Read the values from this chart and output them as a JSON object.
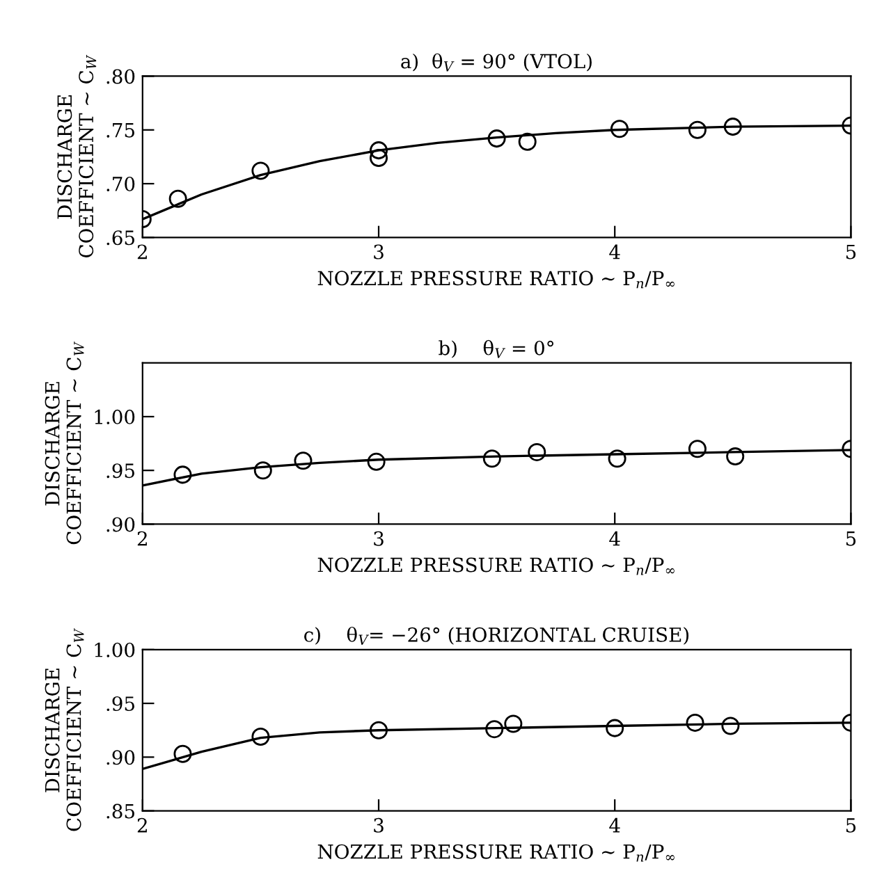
{
  "chart_data": [
    {
      "type": "scatter",
      "title": "a)  θ$_{V}$ = 90° (VTOL)",
      "xlabel": "NOZZLE PRESSURE RATIO ~ P$_{n}$/P$_{∞}$",
      "ylabel": "DISCHARGE\nCOEFFICIENT ~ C$_{W}$",
      "xlim": [
        2,
        5
      ],
      "ylim": [
        0.65,
        0.8
      ],
      "xticks": [
        2,
        3,
        4,
        5
      ],
      "yticks": [
        {
          "value": 0.65,
          "label": ".65"
        },
        {
          "value": 0.7,
          "label": ".70"
        },
        {
          "value": 0.75,
          "label": ".75"
        },
        {
          "value": 0.8,
          "label": ".80"
        }
      ],
      "grid": false,
      "series": [
        {
          "marker": "circle",
          "color": "#000000",
          "x": [
            2.0,
            2.15,
            2.5,
            3.0,
            3.0,
            3.5,
            3.63,
            4.02,
            4.35,
            4.5,
            5.0
          ],
          "values": [
            0.667,
            0.686,
            0.712,
            0.731,
            0.724,
            0.742,
            0.739,
            0.751,
            0.75,
            0.753,
            0.754
          ]
        },
        {
          "type": "line",
          "color": "#000000",
          "x": [
            2.0,
            2.25,
            2.5,
            2.75,
            3.0,
            3.25,
            3.5,
            3.75,
            4.0,
            4.5,
            5.0
          ],
          "values": [
            0.667,
            0.69,
            0.708,
            0.721,
            0.731,
            0.738,
            0.743,
            0.747,
            0.75,
            0.753,
            0.754
          ]
        }
      ]
    },
    {
      "type": "scatter",
      "title": "b)    θ$_{V}$ = 0°",
      "xlabel": "NOZZLE PRESSURE RATIO ~ P$_{n}$/P$_{∞}$",
      "ylabel": "DISCHARGE\nCOEFFICIENT ~ C$_{W}$",
      "xlim": [
        2,
        5
      ],
      "ylim": [
        0.9,
        1.05
      ],
      "xticks": [
        2,
        3,
        4,
        5
      ],
      "yticks": [
        {
          "value": 0.9,
          "label": ".90"
        },
        {
          "value": 0.95,
          "label": ".95"
        },
        {
          "value": 1.0,
          "label": "1.00"
        }
      ],
      "grid": false,
      "series": [
        {
          "marker": "circle",
          "color": "#000000",
          "x": [
            2.17,
            2.51,
            2.68,
            2.99,
            3.48,
            3.67,
            4.01,
            4.35,
            4.51,
            5.0
          ],
          "values": [
            0.946,
            0.95,
            0.959,
            0.958,
            0.961,
            0.967,
            0.961,
            0.97,
            0.963,
            0.97
          ]
        },
        {
          "type": "line",
          "color": "#000000",
          "x": [
            2.0,
            2.25,
            2.5,
            2.75,
            3.0,
            3.5,
            4.0,
            4.5,
            5.0
          ],
          "values": [
            0.936,
            0.947,
            0.953,
            0.957,
            0.96,
            0.963,
            0.965,
            0.967,
            0.969
          ]
        }
      ]
    },
    {
      "type": "scatter",
      "title": "c)    θ$_{V}$= −26° (HORIZONTAL CRUISE)",
      "xlabel": "NOZZLE PRESSURE RATIO ~ P$_{n}$/P$_{∞}$",
      "ylabel": "DISCHARGE\nCOEFFICIENT ~ C$_{W}$",
      "xlim": [
        2,
        5
      ],
      "ylim": [
        0.85,
        1.0
      ],
      "xticks": [
        2,
        3,
        4,
        5
      ],
      "yticks": [
        {
          "value": 0.85,
          "label": ".85"
        },
        {
          "value": 0.9,
          "label": ".90"
        },
        {
          "value": 0.95,
          "label": ".95"
        },
        {
          "value": 1.0,
          "label": "1.00"
        }
      ],
      "grid": false,
      "series": [
        {
          "marker": "circle",
          "color": "#000000",
          "x": [
            2.17,
            2.5,
            3.0,
            3.49,
            3.57,
            4.0,
            4.34,
            4.49,
            5.0
          ],
          "values": [
            0.903,
            0.919,
            0.925,
            0.926,
            0.931,
            0.927,
            0.932,
            0.929,
            0.932
          ]
        },
        {
          "type": "line",
          "color": "#000000",
          "x": [
            2.0,
            2.25,
            2.5,
            2.75,
            3.0,
            3.5,
            4.0,
            4.5,
            5.0
          ],
          "values": [
            0.889,
            0.905,
            0.918,
            0.923,
            0.925,
            0.927,
            0.929,
            0.931,
            0.932
          ]
        }
      ]
    }
  ]
}
